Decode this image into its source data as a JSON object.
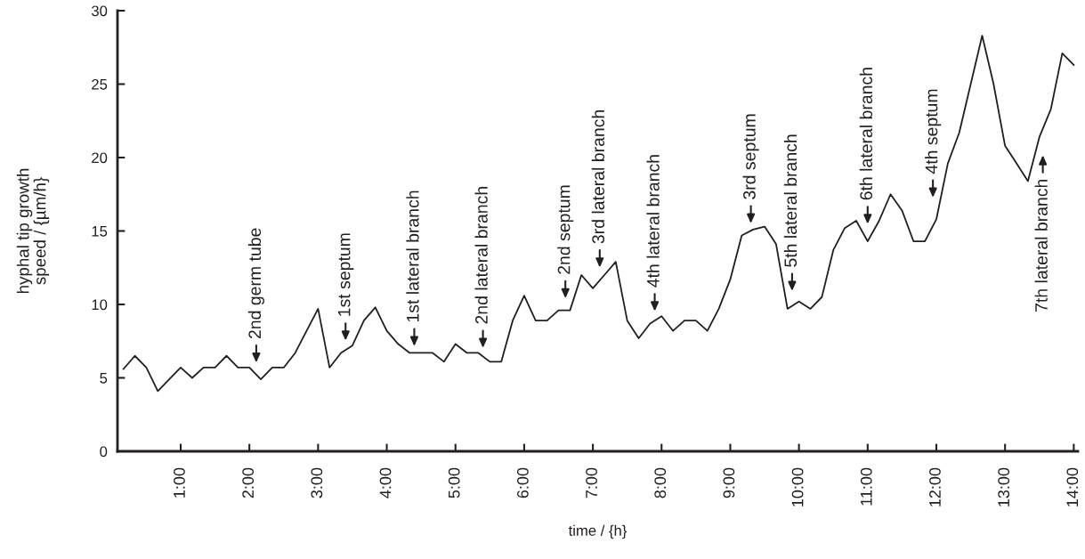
{
  "chart_data": {
    "type": "line",
    "xlabel": "time / {h}",
    "ylabel": "hyphal tip growth\nspeed / {µm/h}",
    "x": [
      0.167,
      0.333,
      0.5,
      0.667,
      0.833,
      1,
      1.167,
      1.333,
      1.5,
      1.667,
      1.833,
      2,
      2.167,
      2.333,
      2.5,
      2.667,
      2.833,
      3,
      3.167,
      3.333,
      3.5,
      3.667,
      3.833,
      4,
      4.167,
      4.333,
      4.5,
      4.667,
      4.833,
      5,
      5.167,
      5.333,
      5.5,
      5.667,
      5.833,
      6,
      6.167,
      6.333,
      6.5,
      6.667,
      6.833,
      7,
      7.167,
      7.333,
      7.5,
      7.667,
      7.833,
      8,
      8.167,
      8.333,
      8.5,
      8.667,
      8.833,
      9,
      9.167,
      9.333,
      9.5,
      9.667,
      9.833,
      10,
      10.167,
      10.333,
      10.5,
      10.667,
      10.833,
      11,
      11.167,
      11.333,
      11.5,
      11.667,
      11.833,
      12,
      12.167,
      12.333,
      12.5,
      12.667,
      12.833,
      13,
      13.167,
      13.333,
      13.5,
      13.667,
      13.833,
      14
    ],
    "series": [
      {
        "color": "#231f20",
        "values": [
          5.6,
          6.5,
          5.7,
          4.1,
          4.9,
          5.7,
          5.0,
          5.7,
          5.7,
          6.5,
          5.7,
          5.7,
          4.9,
          5.7,
          5.7,
          6.7,
          8.2,
          9.7,
          5.7,
          6.7,
          7.2,
          8.9,
          9.8,
          8.2,
          7.3,
          6.7,
          6.7,
          6.7,
          6.1,
          7.3,
          6.7,
          6.7,
          6.1,
          6.1,
          8.9,
          10.6,
          8.9,
          8.9,
          9.6,
          9.6,
          12.0,
          11.1,
          12.0,
          12.9,
          8.9,
          7.7,
          8.7,
          9.2,
          8.2,
          8.9,
          8.9,
          8.2,
          9.7,
          11.7,
          14.7,
          15.1,
          15.3,
          14.1,
          9.7,
          10.2,
          9.7,
          10.5,
          13.7,
          15.2,
          15.7,
          14.3,
          15.7,
          17.5,
          16.4,
          14.3,
          14.3,
          15.8,
          19.6,
          21.7,
          25.0,
          28.3,
          25.0,
          20.8,
          19.6,
          18.4,
          21.4,
          23.3,
          27.1,
          26.3
        ]
      }
    ],
    "xlim": [
      0.08,
      14.06
    ],
    "xticks": [
      {
        "value": 1,
        "label": "1:00"
      },
      {
        "value": 2,
        "label": "2:00"
      },
      {
        "value": 3,
        "label": "3:00"
      },
      {
        "value": 4,
        "label": "4:00"
      },
      {
        "value": 5,
        "label": "5:00"
      },
      {
        "value": 6,
        "label": "6:00"
      },
      {
        "value": 7,
        "label": "7:00"
      },
      {
        "value": 8,
        "label": "8:00"
      },
      {
        "value": 9,
        "label": "9:00"
      },
      {
        "value": 10,
        "label": "10:00"
      },
      {
        "value": 11,
        "label": "11:00"
      },
      {
        "value": 12,
        "label": "12:00"
      },
      {
        "value": 13,
        "label": "13:00"
      },
      {
        "value": 14,
        "label": "14:00"
      }
    ],
    "ylim": [
      0,
      30
    ],
    "yticks": [
      0,
      5,
      10,
      15,
      20,
      25,
      30
    ],
    "line_style": "solid",
    "annotations": [
      {
        "text": "2nd germ tube",
        "x": 2.1,
        "y": 5.2
      },
      {
        "text": "1st septum",
        "x": 3.4,
        "y": 6.9
      },
      {
        "text": "1st lateral branch",
        "x": 4.4,
        "y": 6.7
      },
      {
        "text": "2nd lateral branch",
        "x": 5.4,
        "y": 6.5
      },
      {
        "text": "2nd septum",
        "x": 6.6,
        "y": 9.6
      },
      {
        "text": "3rd lateral branch",
        "x": 7.1,
        "y": 11.6
      },
      {
        "text": "4th lateral branch",
        "x": 7.9,
        "y": 8.9
      },
      {
        "text": "3rd septum",
        "x": 9.3,
        "y": 15.0
      },
      {
        "text": "5th lateral branch",
        "x": 9.9,
        "y": 9.9
      },
      {
        "text": "6th lateral branch",
        "x": 11.0,
        "y": 14.3
      },
      {
        "text": "4th septum",
        "x": 11.95,
        "y": 15.4
      },
      {
        "text": "7th lateral branch",
        "x": 13.55,
        "y": 22.0
      }
    ]
  }
}
